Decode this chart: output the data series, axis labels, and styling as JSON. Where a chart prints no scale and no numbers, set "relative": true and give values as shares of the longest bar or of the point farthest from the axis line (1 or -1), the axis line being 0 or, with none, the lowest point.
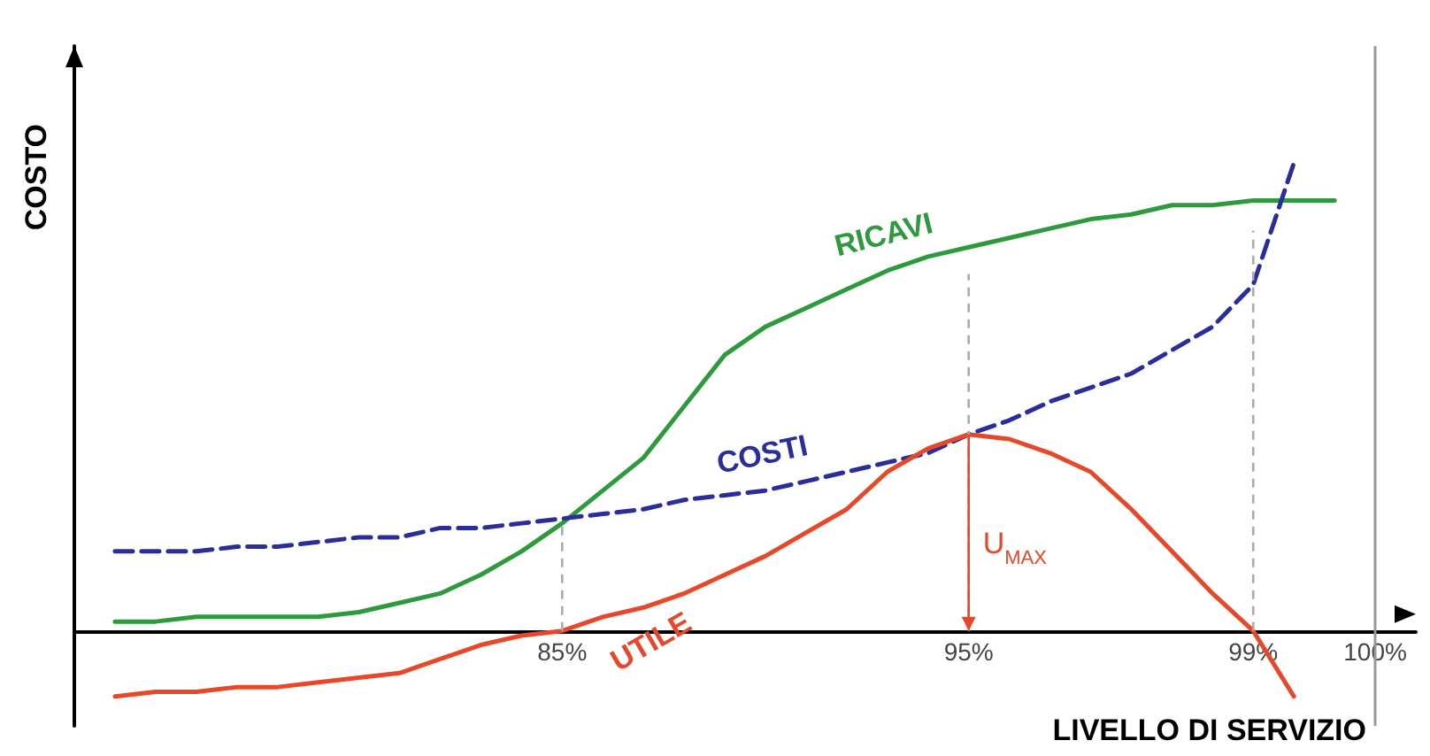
{
  "chart_data": {
    "type": "line",
    "relative": true,
    "xlabel": "LIVELLO DI SERVIZIO",
    "ylabel": "COSTO",
    "categories": [
      null,
      null,
      null,
      null,
      null,
      null,
      null,
      null,
      null,
      null,
      null,
      null,
      "85%",
      null,
      null,
      null,
      null,
      null,
      null,
      null,
      null,
      null,
      "95%",
      null,
      null,
      null,
      null,
      null,
      null,
      "99%",
      null,
      null,
      "100%",
      null
    ],
    "series": [
      {
        "name": "RICAVI",
        "color": "#2e9a3e",
        "line_style": "solid",
        "values": [
          null,
          0.02,
          0.02,
          0.03,
          0.03,
          0.03,
          0.03,
          0.04,
          0.06,
          0.08,
          0.12,
          0.17,
          0.23,
          0.3,
          0.37,
          0.48,
          0.59,
          0.65,
          0.69,
          0.73,
          0.77,
          0.8,
          0.82,
          0.84,
          0.86,
          0.88,
          0.89,
          0.91,
          0.91,
          0.92,
          0.92,
          0.92,
          null,
          null
        ]
      },
      {
        "name": "COSTI",
        "color": "#2b2e9a",
        "line_style": "dashed",
        "values": [
          null,
          0.17,
          0.17,
          0.17,
          0.18,
          0.18,
          0.19,
          0.2,
          0.2,
          0.22,
          0.22,
          0.23,
          0.24,
          0.25,
          0.26,
          0.28,
          0.29,
          0.3,
          0.32,
          0.34,
          0.36,
          0.38,
          0.42,
          0.45,
          0.49,
          0.52,
          0.55,
          0.6,
          0.65,
          0.74,
          1.0,
          null,
          null,
          null
        ]
      },
      {
        "name": "UTILE",
        "color": "#e8482a",
        "line_style": "solid",
        "values": [
          null,
          -0.14,
          -0.13,
          -0.13,
          -0.12,
          -0.12,
          -0.11,
          -0.1,
          -0.09,
          -0.06,
          -0.03,
          -0.01,
          0,
          0.03,
          0.05,
          0.08,
          0.12,
          0.16,
          0.21,
          0.26,
          0.34,
          0.39,
          0.42,
          0.41,
          0.38,
          0.34,
          0.26,
          0.17,
          0.08,
          0,
          -0.14,
          null,
          null,
          null
        ]
      }
    ],
    "ref_lines": [
      {
        "axis": "x",
        "value": "100%",
        "color": "#999999"
      }
    ],
    "annotations": [
      "U$_{MAX}$"
    ],
    "marker": "none",
    "grid": false,
    "legend": false
  }
}
